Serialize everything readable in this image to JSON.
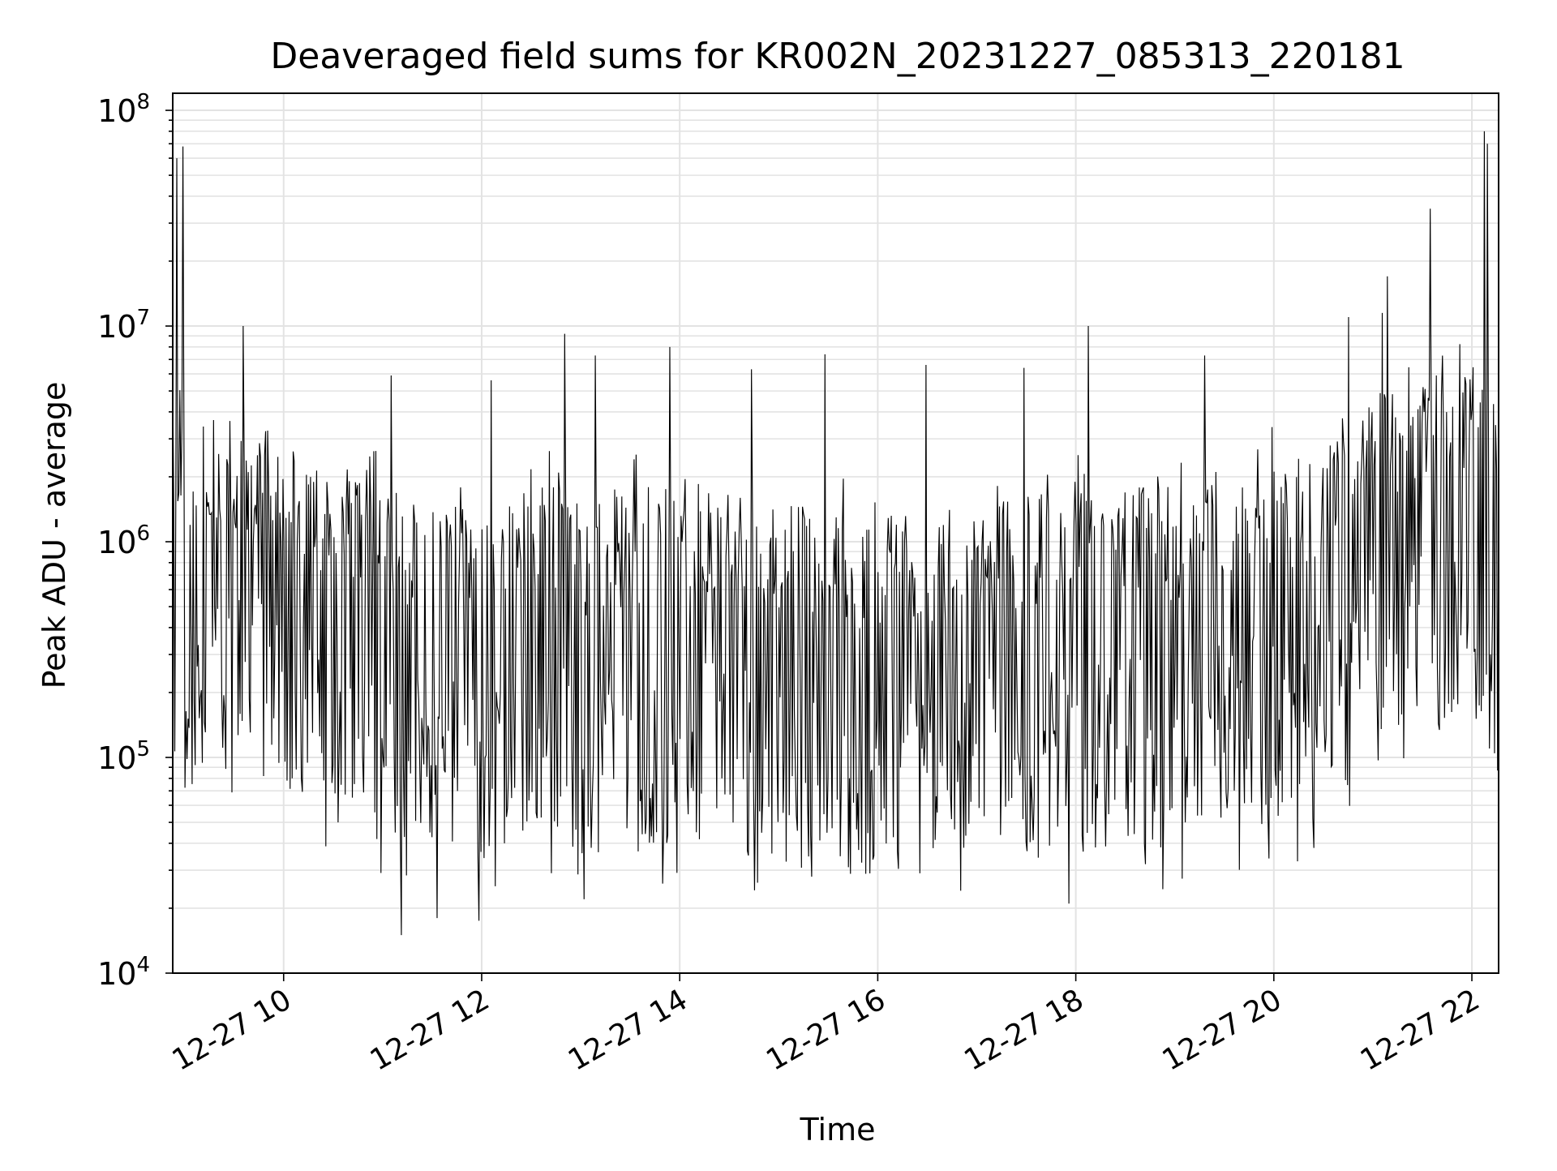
{
  "chart_data": {
    "type": "line",
    "title": "Deaveraged field sums for KR002N_20231227_085313_220181",
    "xlabel": "Time",
    "ylabel": "Peak ADU - average",
    "yscale": "log",
    "ylim": [
      10000,
      120000000
    ],
    "xlim_hours": [
      8.88,
      22.27
    ],
    "grid": true,
    "line_color": "#000000",
    "x_ticks": [
      {
        "hour": 10,
        "label": "12-27 10"
      },
      {
        "hour": 12,
        "label": "12-27 12"
      },
      {
        "hour": 14,
        "label": "12-27 14"
      },
      {
        "hour": 16,
        "label": "12-27 16"
      },
      {
        "hour": 18,
        "label": "12-27 18"
      },
      {
        "hour": 20,
        "label": "12-27 20"
      },
      {
        "hour": 22,
        "label": "12-27 22"
      }
    ],
    "y_ticks": [
      {
        "value": 10000,
        "base": "10",
        "exp": "4"
      },
      {
        "value": 100000,
        "base": "10",
        "exp": "5"
      },
      {
        "value": 1000000,
        "base": "10",
        "exp": "6"
      },
      {
        "value": 10000000,
        "base": "10",
        "exp": "7"
      },
      {
        "value": 100000000,
        "base": "10",
        "exp": "8"
      }
    ],
    "series": [
      {
        "name": "Deaveraged field sums",
        "baseline": [
          [
            8.88,
            1000000
          ],
          [
            9.0,
            900000
          ],
          [
            9.5,
            850000
          ],
          [
            10.0,
            700000
          ],
          [
            10.5,
            550000
          ],
          [
            11.0,
            450000
          ],
          [
            11.5,
            350000
          ],
          [
            12.0,
            350000
          ],
          [
            12.5,
            500000
          ],
          [
            13.0,
            350000
          ],
          [
            14.0,
            450000
          ],
          [
            15.0,
            350000
          ],
          [
            16.0,
            300000
          ],
          [
            17.0,
            350000
          ],
          [
            18.0,
            400000
          ],
          [
            19.0,
            420000
          ],
          [
            20.0,
            550000
          ],
          [
            20.5,
            700000
          ],
          [
            21.0,
            1100000
          ],
          [
            21.5,
            1300000
          ],
          [
            22.0,
            1500000
          ],
          [
            22.27,
            900000
          ]
        ],
        "peaks": [
          [
            8.92,
            60000000
          ],
          [
            8.98,
            68000000
          ],
          [
            9.59,
            10000000
          ],
          [
            11.09,
            5900000
          ],
          [
            12.1,
            5600000
          ],
          [
            12.84,
            9200000
          ],
          [
            13.15,
            7300000
          ],
          [
            13.9,
            8000000
          ],
          [
            14.72,
            6300000
          ],
          [
            15.47,
            7400000
          ],
          [
            16.49,
            6600000
          ],
          [
            17.48,
            6400000
          ],
          [
            18.13,
            10000000
          ],
          [
            19.3,
            7300000
          ],
          [
            20.75,
            11000000
          ],
          [
            21.1,
            11500000
          ],
          [
            21.15,
            17000000
          ],
          [
            21.58,
            35000000
          ],
          [
            22.13,
            80000000
          ],
          [
            22.16,
            70000000
          ]
        ],
        "troughs": [
          [
            9.8,
            82000
          ],
          [
            10.55,
            50000
          ],
          [
            11.19,
            15000
          ],
          [
            11.55,
            18000
          ],
          [
            11.97,
            17500
          ],
          [
            13.03,
            22000
          ],
          [
            13.83,
            26000
          ],
          [
            15.33,
            28000
          ],
          [
            15.92,
            29000
          ],
          [
            17.93,
            21000
          ],
          [
            18.7,
            32000
          ],
          [
            19.95,
            34000
          ],
          [
            20.24,
            33000
          ]
        ],
        "sample_count": 1300
      }
    ]
  }
}
